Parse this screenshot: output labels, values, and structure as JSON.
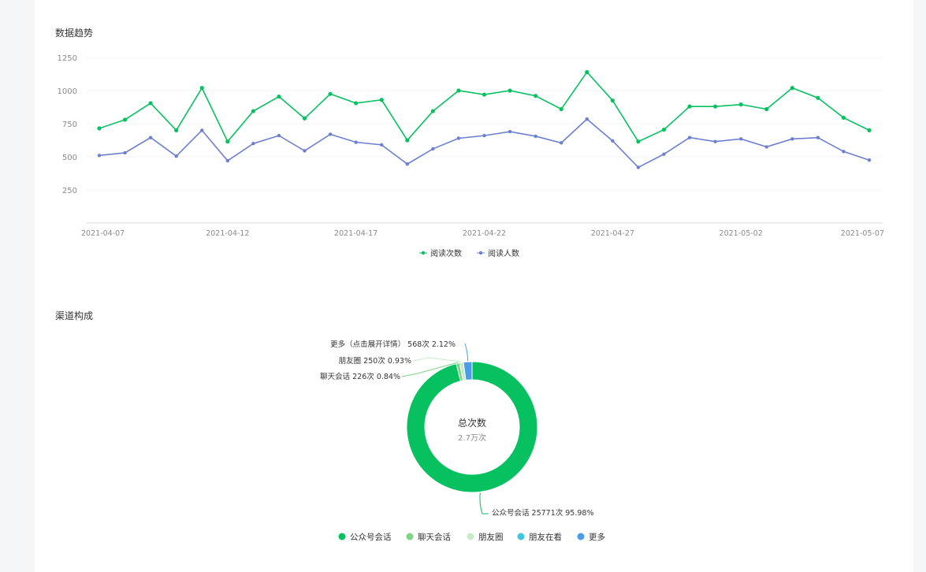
{
  "sections": {
    "trend_title": "数据趋势",
    "channel_title": "渠道构成"
  },
  "chart_data": [
    {
      "type": "line",
      "title": "数据趋势",
      "x": [
        "2021-04-07",
        "2021-04-08",
        "2021-04-09",
        "2021-04-10",
        "2021-04-11",
        "2021-04-12",
        "2021-04-13",
        "2021-04-14",
        "2021-04-15",
        "2021-04-16",
        "2021-04-17",
        "2021-04-18",
        "2021-04-19",
        "2021-04-20",
        "2021-04-21",
        "2021-04-22",
        "2021-04-23",
        "2021-04-24",
        "2021-04-25",
        "2021-04-26",
        "2021-04-27",
        "2021-04-28",
        "2021-04-29",
        "2021-04-30",
        "2021-05-01",
        "2021-05-02",
        "2021-05-03",
        "2021-05-04",
        "2021-05-05",
        "2021-05-06",
        "2021-05-07"
      ],
      "x_tick_labels": [
        "2021-04-07",
        "2021-04-12",
        "2021-04-17",
        "2021-04-22",
        "2021-04-27",
        "2021-05-02",
        "2021-05-07"
      ],
      "y_ticks": [
        250,
        500,
        750,
        1000,
        1250
      ],
      "ylim": [
        0,
        1250
      ],
      "grid": true,
      "legend": "bottom-center",
      "series": [
        {
          "name": "阅读次数",
          "color": "#07c160",
          "values": [
            715,
            780,
            905,
            700,
            1020,
            615,
            845,
            955,
            790,
            975,
            905,
            930,
            625,
            845,
            1000,
            970,
            1000,
            960,
            860,
            1140,
            925,
            615,
            705,
            880,
            880,
            895,
            860,
            1020,
            945,
            795,
            700
          ]
        },
        {
          "name": "阅读人数",
          "color": "#6c7fd0",
          "values": [
            510,
            530,
            645,
            505,
            700,
            470,
            600,
            660,
            545,
            670,
            610,
            590,
            445,
            560,
            640,
            660,
            690,
            655,
            605,
            785,
            620,
            420,
            520,
            645,
            615,
            635,
            575,
            635,
            645,
            540,
            475
          ]
        }
      ]
    },
    {
      "type": "pie",
      "title": "渠道构成",
      "center_label": "总次数",
      "center_value": "2.7万次",
      "legend": "bottom-center",
      "slices": [
        {
          "name": "公众号会话",
          "label": "公众号会话 25771次 95.98%",
          "value": 25771,
          "percent": 95.98,
          "color": "#07c160"
        },
        {
          "name": "聊天会话",
          "label": "聊天会话 226次 0.84%",
          "value": 226,
          "percent": 0.84,
          "color": "#7ed486"
        },
        {
          "name": "朋友圈",
          "label": "朋友圈 250次 0.93%",
          "value": 250,
          "percent": 0.93,
          "color": "#c6ecc6"
        },
        {
          "name": "朋友在看",
          "label": "",
          "value": 0,
          "percent": 0,
          "color": "#3fc7e0"
        },
        {
          "name": "更多",
          "label": "更多（点击展开详情） 568次 2.12%",
          "value": 568,
          "percent": 2.12,
          "color": "#4a9de8"
        }
      ]
    }
  ]
}
